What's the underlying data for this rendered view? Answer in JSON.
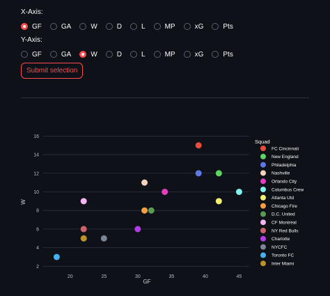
{
  "x_axis": {
    "label": "X-Axis:",
    "options": [
      "GF",
      "GA",
      "W",
      "D",
      "L",
      "MP",
      "xG",
      "Pts"
    ],
    "selected": "GF"
  },
  "y_axis": {
    "label": "Y-Axis:",
    "options": [
      "GF",
      "GA",
      "W",
      "D",
      "L",
      "MP",
      "xG",
      "Pts"
    ],
    "selected": "W"
  },
  "submit_label": "Submit selection",
  "chart_data": {
    "type": "scatter",
    "xlabel": "GF",
    "ylabel": "W",
    "legend_title": "Squad",
    "legend_position": "right",
    "xlim": [
      16,
      46.5
    ],
    "ylim": [
      1.8,
      16.4
    ],
    "xticks": [
      20,
      25,
      30,
      35,
      40,
      45
    ],
    "yticks": [
      2,
      4,
      6,
      8,
      10,
      12,
      14,
      16
    ],
    "grid": "horizontal",
    "series": [
      {
        "name": "FC Cincinnati",
        "color": "#e74c3c",
        "x": 39,
        "y": 15
      },
      {
        "name": "New England",
        "color": "#5fd35f",
        "x": 42,
        "y": 12
      },
      {
        "name": "Philadelphia",
        "color": "#5f78e8",
        "x": 39,
        "y": 12
      },
      {
        "name": "Nashville",
        "color": "#f6d2bd",
        "x": 31,
        "y": 11
      },
      {
        "name": "Orlando City",
        "color": "#e23ec0",
        "x": 34,
        "y": 10
      },
      {
        "name": "Columbus Crew",
        "color": "#7ef3ee",
        "x": 45,
        "y": 10
      },
      {
        "name": "Atlanta Utd",
        "color": "#f2ef72",
        "x": 42,
        "y": 9
      },
      {
        "name": "Chicago Fire",
        "color": "#f59f42",
        "x": 31,
        "y": 8
      },
      {
        "name": "D.C. United",
        "color": "#5b9a52",
        "x": 32,
        "y": 8
      },
      {
        "name": "CF Montréal",
        "color": "#f3b4f3",
        "x": 22,
        "y": 9
      },
      {
        "name": "NY Red Bulls",
        "color": "#c9636e",
        "x": 22,
        "y": 6
      },
      {
        "name": "Charlotte",
        "color": "#b33be8",
        "x": 30,
        "y": 6
      },
      {
        "name": "NYCFC",
        "color": "#7b8593",
        "x": 25,
        "y": 5
      },
      {
        "name": "Toronto FC",
        "color": "#45b0f0",
        "x": 18,
        "y": 3
      },
      {
        "name": "Inter Miami",
        "color": "#b8922c",
        "x": 22,
        "y": 5
      }
    ]
  }
}
